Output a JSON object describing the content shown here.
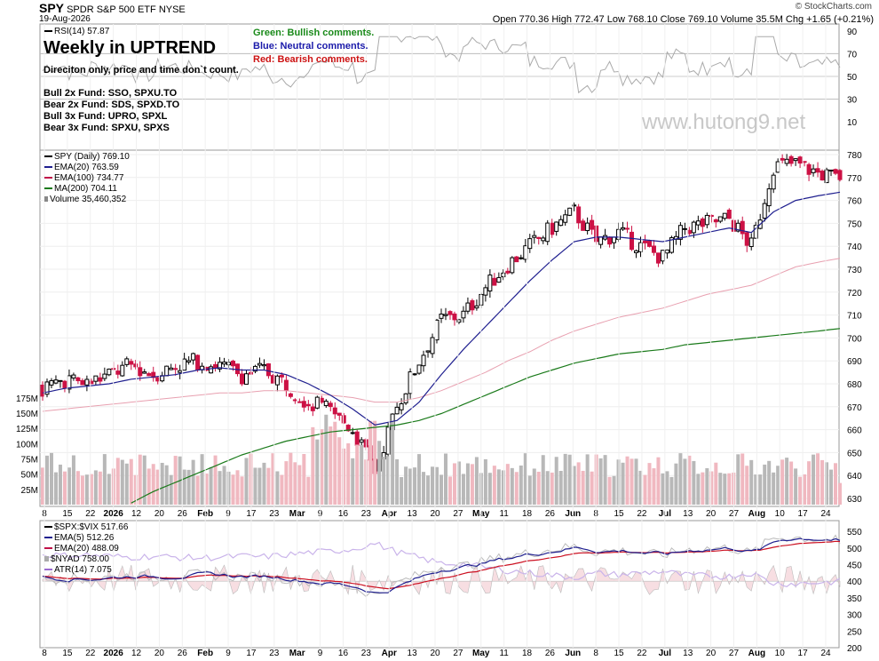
{
  "header": {
    "symbol": "SPY",
    "name": "SPDR S&P 500 ETF",
    "exchange": "NYSE",
    "date": "19-Aug-2026",
    "ohlc": "Open 770.36  High 772.47  Low 768.10  Close 769.10  Volume 35.5M  Chg +1.65 (+0.21%)",
    "credit": "© StockCharts.com"
  },
  "rsi_panel": {
    "label": "RSI(14) 57.87",
    "title": "Weekly in UPTREND",
    "subtitle": "Direciton only, price and time don`t count.",
    "funds": [
      "Bull 2x Fund: SSO, SPXU.TO",
      "Bear 2x Fund: SDS, SPXD.TO",
      "Bull 3x Fund: UPRO, SPXL",
      "Bear 3x Fund: SPXU, SPXS"
    ],
    "key_green": "Green: Bullish comments.",
    "key_blue": "Blue: Neutral comments.",
    "key_red": "Red: Bearish comments.",
    "watermark": "www.hutong9.net",
    "ticks": [
      "90",
      "70",
      "50",
      "30",
      "10"
    ]
  },
  "price_panel": {
    "legend": [
      {
        "text": "SPY (Daily) 769.10",
        "color": "#000000"
      },
      {
        "text": "EMA(20) 763.59",
        "color": "#1f1f8f"
      },
      {
        "text": "EMA(100) 734.77",
        "color": "#c01048"
      },
      {
        "text": "MA(200) 704.11",
        "color": "#1a7a1a"
      },
      {
        "text": "Volume 35,460,352",
        "color": "#666666"
      }
    ],
    "price_ticks": [
      "780",
      "770",
      "760",
      "750",
      "740",
      "730",
      "720",
      "710",
      "700",
      "690",
      "680",
      "670",
      "660",
      "650",
      "640",
      "630"
    ],
    "volume_ticks": [
      "175M",
      "150M",
      "125M",
      "100M",
      "75M",
      "50M",
      "25M"
    ]
  },
  "vix_panel": {
    "legend": [
      {
        "text": "$SPX:$VIX 517.66",
        "color": "#000000"
      },
      {
        "text": "EMA(5) 512.26",
        "color": "#1f1f8f"
      },
      {
        "text": "EMA(20) 488.09",
        "color": "#c01048"
      },
      {
        "text": "$NYAD 758.00",
        "color": "#777777"
      },
      {
        "text": "ATR(14) 7.075",
        "color": "#9a6ad0"
      }
    ],
    "ticks": [
      "550",
      "500",
      "450",
      "400",
      "350",
      "300",
      "250",
      "200"
    ]
  },
  "x_axis": {
    "labels": [
      "8",
      "15",
      "22",
      "2026",
      "12",
      "20",
      "26",
      "Feb",
      "9",
      "17",
      "23",
      "Mar",
      "9",
      "16",
      "23",
      "Apr",
      "13",
      "20",
      "27",
      "May",
      "11",
      "18",
      "26",
      "Jun",
      "8",
      "15",
      "22",
      "Jul",
      "13",
      "20",
      "27",
      "Aug",
      "10",
      "17",
      "24"
    ]
  },
  "chart_data": {
    "type": "candlestick",
    "title": "Weekly in UPTREND",
    "xlabel": "",
    "ylabel": "",
    "ylim": [
      625,
      785
    ],
    "volume_ylim_millions": [
      0,
      180
    ],
    "rsi_ylim": [
      0,
      100
    ],
    "vix_ratio_ylim": [
      190,
      565
    ],
    "price_keypoints": [
      [
        "8 Dec",
        678
      ],
      [
        "15 Dec",
        682
      ],
      [
        "22 Dec",
        680
      ],
      [
        "2 Jan",
        684
      ],
      [
        "12 Jan",
        688
      ],
      [
        "20 Jan",
        684
      ],
      [
        "26 Jan",
        688
      ],
      [
        "2 Feb",
        690
      ],
      [
        "9 Feb",
        688
      ],
      [
        "17 Feb",
        684
      ],
      [
        "23 Feb",
        686
      ],
      [
        "2 Mar",
        680
      ],
      [
        "9 Mar",
        672
      ],
      [
        "16 Mar",
        668
      ],
      [
        "23 Mar",
        660
      ],
      [
        "1 Apr",
        642
      ],
      [
        "6 Apr",
        670
      ],
      [
        "13 Apr",
        690
      ],
      [
        "20 Apr",
        708
      ],
      [
        "27 Apr",
        710
      ],
      [
        "4 May",
        722
      ],
      [
        "11 May",
        732
      ],
      [
        "18 May",
        740
      ],
      [
        "26 May",
        748
      ],
      [
        "2 Jun",
        755
      ],
      [
        "8 Jun",
        742
      ],
      [
        "15 Jun",
        746
      ],
      [
        "22 Jun",
        740
      ],
      [
        "29 Jun",
        735
      ],
      [
        "6 Jul",
        748
      ],
      [
        "13 Jul",
        750
      ],
      [
        "20 Jul",
        752
      ],
      [
        "27 Jul",
        740
      ],
      [
        "3 Aug",
        775
      ],
      [
        "10 Aug",
        776
      ],
      [
        "17 Aug",
        772
      ],
      [
        "19 Aug",
        769.1
      ]
    ],
    "series": [
      {
        "name": "EMA(20)",
        "values_at_keypoints": [
          676,
          678,
          679,
          680,
          682,
          683,
          684,
          686,
          687,
          686,
          686,
          684,
          680,
          675,
          669,
          662,
          664,
          672,
          684,
          695,
          705,
          715,
          725,
          734,
          742,
          744,
          744,
          743,
          742,
          744,
          746,
          748,
          746,
          755,
          760,
          762,
          763.59
        ]
      },
      {
        "name": "EMA(100)",
        "values_at_keypoints": [
          668,
          669,
          670,
          671,
          672,
          673,
          674,
          675,
          676,
          676,
          677,
          677,
          676,
          675,
          674,
          672,
          672,
          674,
          677,
          681,
          685,
          690,
          694,
          699,
          703,
          706,
          709,
          711,
          713,
          716,
          719,
          721,
          723,
          727,
          731,
          733,
          734.77
        ]
      },
      {
        "name": "MA(200)",
        "values_at_keypoints": [
          null,
          null,
          null,
          null,
          628,
          633,
          637,
          641,
          645,
          649,
          652,
          655,
          657,
          659,
          660,
          661,
          662,
          664,
          667,
          671,
          675,
          679,
          683,
          686,
          689,
          691,
          693,
          694,
          695,
          697,
          698,
          699,
          700,
          701,
          702,
          703,
          704.11
        ]
      },
      {
        "name": "RSI(14)",
        "last": 57.87
      },
      {
        "name": "$SPX:$VIX",
        "last": 517.66
      },
      {
        "name": "EMA(5)",
        "last": 512.26
      },
      {
        "name": "EMA(20)",
        "last": 488.09
      },
      {
        "name": "$NYAD",
        "last": 758.0
      },
      {
        "name": "ATR(14)",
        "last": 7.075
      }
    ],
    "last_volume": 35460352
  },
  "colors": {
    "up": "#000000",
    "down": "#cc1144",
    "ema20": "#1f1f8f",
    "ema100": "#e8a0b0",
    "ma200": "#1a7a1a",
    "vol_up": "#b8b8b8",
    "vol_down": "#f0b8c0",
    "green": "#1a8a1a",
    "blue": "#1a1aaa",
    "red": "#cc1111"
  }
}
